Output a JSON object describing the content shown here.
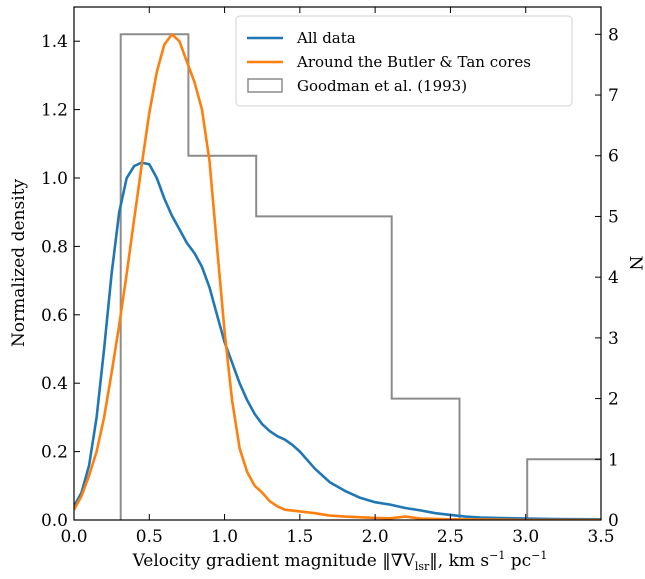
{
  "chart_data": {
    "type": "line",
    "xlabel_prefix": "Velocity gradient magnitude ‖∇V",
    "xlabel_sub": "lsr",
    "xlabel_suffix": "‖,  km s",
    "xlabel_exp1": "−1",
    "xlabel_unit2": " pc",
    "xlabel_exp2": "−1",
    "ylabel": "Normalized density",
    "y2label": "N",
    "xlim": [
      0.0,
      3.5
    ],
    "ylim": [
      0.0,
      1.5
    ],
    "y2lim": [
      0,
      8.45
    ],
    "x_ticks": [
      "0.0",
      "0.5",
      "1.0",
      "1.5",
      "2.0",
      "2.5",
      "3.0",
      "3.5"
    ],
    "y_ticks": [
      "0.0",
      "0.2",
      "0.4",
      "0.6",
      "0.8",
      "1.0",
      "1.2",
      "1.4"
    ],
    "y2_ticks": [
      "0",
      "1",
      "2",
      "3",
      "4",
      "5",
      "6",
      "7",
      "8"
    ],
    "legend_position": "top-right",
    "series": [
      {
        "name": "All data",
        "color": "#1f77b4",
        "points": [
          [
            0.0,
            0.04
          ],
          [
            0.05,
            0.08
          ],
          [
            0.1,
            0.16
          ],
          [
            0.15,
            0.3
          ],
          [
            0.2,
            0.5
          ],
          [
            0.25,
            0.72
          ],
          [
            0.3,
            0.9
          ],
          [
            0.35,
            1.0
          ],
          [
            0.4,
            1.035
          ],
          [
            0.45,
            1.045
          ],
          [
            0.5,
            1.04
          ],
          [
            0.55,
            1.0
          ],
          [
            0.6,
            0.94
          ],
          [
            0.65,
            0.89
          ],
          [
            0.7,
            0.85
          ],
          [
            0.75,
            0.81
          ],
          [
            0.8,
            0.78
          ],
          [
            0.85,
            0.74
          ],
          [
            0.9,
            0.68
          ],
          [
            0.95,
            0.6
          ],
          [
            1.0,
            0.52
          ],
          [
            1.05,
            0.46
          ],
          [
            1.1,
            0.4
          ],
          [
            1.15,
            0.35
          ],
          [
            1.2,
            0.31
          ],
          [
            1.25,
            0.28
          ],
          [
            1.3,
            0.26
          ],
          [
            1.35,
            0.245
          ],
          [
            1.4,
            0.235
          ],
          [
            1.45,
            0.22
          ],
          [
            1.5,
            0.2
          ],
          [
            1.6,
            0.15
          ],
          [
            1.7,
            0.11
          ],
          [
            1.8,
            0.085
          ],
          [
            1.9,
            0.065
          ],
          [
            2.0,
            0.052
          ],
          [
            2.1,
            0.045
          ],
          [
            2.2,
            0.035
          ],
          [
            2.3,
            0.028
          ],
          [
            2.4,
            0.02
          ],
          [
            2.5,
            0.015
          ],
          [
            2.6,
            0.01
          ],
          [
            2.7,
            0.007
          ],
          [
            2.8,
            0.006
          ],
          [
            3.0,
            0.004
          ],
          [
            3.2,
            0.003
          ],
          [
            3.5,
            0.002
          ]
        ]
      },
      {
        "name": "Around the Butler & Tan cores",
        "color": "#ff7f0e",
        "points": [
          [
            0.0,
            0.03
          ],
          [
            0.05,
            0.07
          ],
          [
            0.1,
            0.13
          ],
          [
            0.15,
            0.2
          ],
          [
            0.2,
            0.3
          ],
          [
            0.25,
            0.43
          ],
          [
            0.3,
            0.57
          ],
          [
            0.35,
            0.72
          ],
          [
            0.4,
            0.88
          ],
          [
            0.45,
            1.04
          ],
          [
            0.5,
            1.19
          ],
          [
            0.55,
            1.31
          ],
          [
            0.6,
            1.39
          ],
          [
            0.65,
            1.42
          ],
          [
            0.7,
            1.4
          ],
          [
            0.75,
            1.34
          ],
          [
            0.8,
            1.28
          ],
          [
            0.85,
            1.2
          ],
          [
            0.9,
            1.05
          ],
          [
            0.95,
            0.8
          ],
          [
            1.0,
            0.55
          ],
          [
            1.05,
            0.35
          ],
          [
            1.1,
            0.21
          ],
          [
            1.15,
            0.14
          ],
          [
            1.2,
            0.1
          ],
          [
            1.25,
            0.08
          ],
          [
            1.3,
            0.055
          ],
          [
            1.35,
            0.04
          ],
          [
            1.4,
            0.03
          ],
          [
            1.5,
            0.025
          ],
          [
            1.6,
            0.02
          ],
          [
            1.7,
            0.013
          ],
          [
            1.8,
            0.01
          ],
          [
            2.0,
            0.006
          ],
          [
            2.1,
            0.005
          ],
          [
            2.2,
            0.01
          ],
          [
            2.3,
            0.004
          ],
          [
            2.5,
            0.002
          ],
          [
            3.0,
            0.0
          ],
          [
            3.5,
            0.0
          ]
        ]
      }
    ],
    "histogram": {
      "name": "Goodman et al. (1993)",
      "color": "#8c8c8c",
      "bins": [
        {
          "x0": 0.31,
          "x1": 0.76,
          "n": 8
        },
        {
          "x0": 0.76,
          "x1": 1.21,
          "n": 6
        },
        {
          "x0": 1.21,
          "x1": 2.11,
          "n": 5
        },
        {
          "x0": 2.11,
          "x1": 2.56,
          "n": 2
        },
        {
          "x0": 2.56,
          "x1": 3.01,
          "n": 0
        },
        {
          "x0": 3.01,
          "x1": 3.5,
          "n": 1
        }
      ]
    }
  }
}
